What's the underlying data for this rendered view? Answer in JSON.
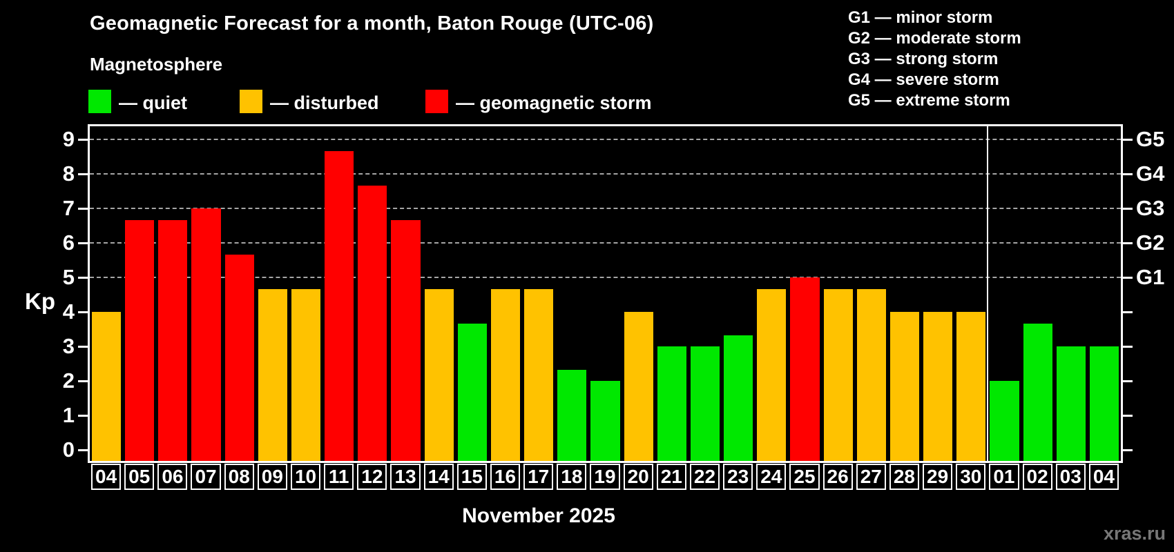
{
  "title": "Geomagnetic Forecast for a month, Baton Rouge (UTC-06)",
  "subtitle": "Magnetosphere",
  "legend": {
    "quiet": "— quiet",
    "disturbed": "— disturbed",
    "storm": "— geomagnetic storm"
  },
  "g_legend": [
    "G1 — minor storm",
    "G2 — moderate storm",
    "G3 — strong storm",
    "G4 — severe storm",
    "G5 — extreme storm"
  ],
  "colors": {
    "quiet": "#00e800",
    "disturbed": "#ffc200",
    "storm": "#ff0000",
    "frame": "#ffffff",
    "grid": "rgba(255,255,255,0.65)",
    "watermark": "#777777"
  },
  "watermark": "xras.ru",
  "chart_data": {
    "type": "bar",
    "title": "Geomagnetic Forecast for a month, Baton Rouge (UTC-06)",
    "xlabel": "November 2025",
    "ylabel": "Kp",
    "ylim": [
      -0.32,
      9.38
    ],
    "yticks": [
      0,
      1,
      2,
      3,
      4,
      5,
      6,
      7,
      8,
      9
    ],
    "gridline_levels": [
      5,
      6,
      7,
      8,
      9
    ],
    "right_axis_labels": [
      {
        "kp": 5,
        "label": "G1"
      },
      {
        "kp": 6,
        "label": "G2"
      },
      {
        "kp": 7,
        "label": "G3"
      },
      {
        "kp": 8,
        "label": "G4"
      },
      {
        "kp": 9,
        "label": "G5"
      }
    ],
    "legend_position": "top-left",
    "grid": "dashed, storm levels only",
    "month_separator_after_index": 26,
    "categories": [
      "04",
      "05",
      "06",
      "07",
      "08",
      "09",
      "10",
      "11",
      "12",
      "13",
      "14",
      "15",
      "16",
      "17",
      "18",
      "19",
      "20",
      "21",
      "22",
      "23",
      "24",
      "25",
      "26",
      "27",
      "28",
      "29",
      "30",
      "01",
      "02",
      "03",
      "04"
    ],
    "series": [
      {
        "name": "Kp index",
        "values": [
          4,
          6.67,
          6.67,
          7,
          5.67,
          4.67,
          4.67,
          8.67,
          7.67,
          6.67,
          4.67,
          3.67,
          4.67,
          4.67,
          2.33,
          2,
          4,
          3,
          3,
          3.33,
          4.67,
          5,
          4.67,
          4.67,
          4,
          4,
          4,
          2,
          3.67,
          3,
          3
        ],
        "statuses": [
          "disturbed",
          "storm",
          "storm",
          "storm",
          "storm",
          "disturbed",
          "disturbed",
          "storm",
          "storm",
          "storm",
          "disturbed",
          "quiet",
          "disturbed",
          "disturbed",
          "quiet",
          "quiet",
          "disturbed",
          "quiet",
          "quiet",
          "quiet",
          "disturbed",
          "storm",
          "disturbed",
          "disturbed",
          "disturbed",
          "disturbed",
          "disturbed",
          "quiet",
          "quiet",
          "quiet",
          "quiet"
        ]
      }
    ]
  }
}
